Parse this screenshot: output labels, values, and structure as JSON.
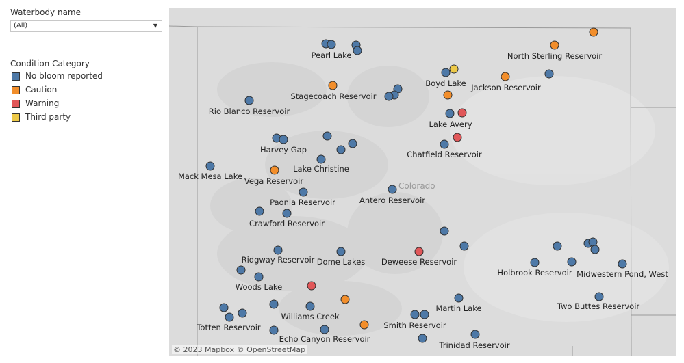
{
  "filter": {
    "title": "Waterbody name",
    "value": "(All)",
    "caret_icon": "caret-down-icon"
  },
  "legend": {
    "title": "Condition Category",
    "items": [
      {
        "label": "No bloom reported",
        "color": "#4e79a7"
      },
      {
        "label": "Caution",
        "color": "#f28e2b"
      },
      {
        "label": "Warning",
        "color": "#e15759"
      },
      {
        "label": "Third party",
        "color": "#edc948"
      }
    ]
  },
  "map": {
    "state_label": "Colorado",
    "attribution": "© 2023 Mapbox  © OpenStreetMap",
    "labels": [
      "Pearl Lake",
      "North Sterling Reservoir",
      "Stagecoach Reservoir",
      "Boyd Lake",
      "Jackson Reservoir",
      "Rio Blanco Reservoir",
      "Lake Avery",
      "Harvey Gap",
      "Chatfield Reservoir",
      "Lake Christine",
      "Mack Mesa Lake",
      "Vega Reservoir",
      "Antero Reservoir",
      "Paonia Reservoir",
      "Crawford Reservoir",
      "Ridgway Reservoir",
      "Dome Lakes",
      "Deweese Reservoir",
      "Holbrook Reservoir",
      "Midwestern Pond, West",
      "Woods Lake",
      "Martin Lake",
      "Two Buttes Reservoir",
      "Williams Creek",
      "Totten Reservoir",
      "Smith Reservoir",
      "Echo Canyon Reservoir",
      "Trinidad Reservoir"
    ]
  }
}
